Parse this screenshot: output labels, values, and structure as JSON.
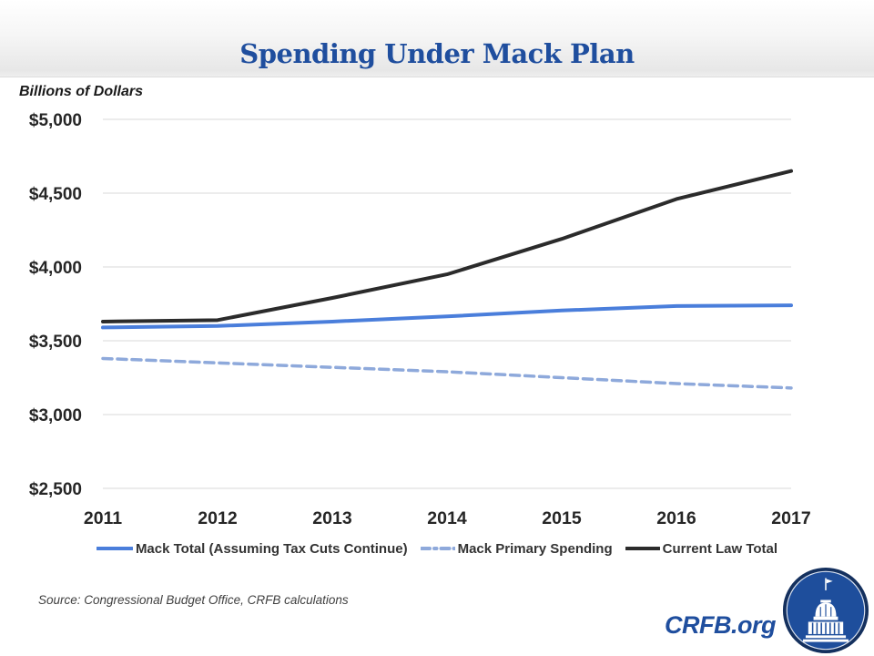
{
  "header": {
    "title": "Spending Under Mack Plan"
  },
  "axis_title": "Billions of Dollars",
  "chart_data": {
    "type": "line",
    "title": "Spending Under Mack Plan",
    "ylabel": "Billions of Dollars",
    "x": [
      2011,
      2012,
      2013,
      2014,
      2015,
      2016,
      2017
    ],
    "x_tick_labels": [
      "2011",
      "2012",
      "2013",
      "2014",
      "2015",
      "2016",
      "2017"
    ],
    "series": [
      {
        "name": "Mack Total (Assuming Tax Cuts Continue)",
        "style": "solid",
        "color": "#4a7edb",
        "width": 4,
        "values": [
          3590,
          3600,
          3630,
          3665,
          3705,
          3735,
          3740
        ]
      },
      {
        "name": "Mack Primary Spending",
        "style": "dashed",
        "color": "#8ea9db",
        "width": 3.5,
        "values": [
          3380,
          3350,
          3320,
          3290,
          3250,
          3210,
          3180
        ]
      },
      {
        "name": "Current Law Total",
        "style": "solid",
        "color": "#2b2b2b",
        "width": 4,
        "values": [
          3630,
          3640,
          3790,
          3950,
          4190,
          4460,
          4650
        ]
      }
    ],
    "ylim": [
      2500,
      5000
    ],
    "y_tick_values": [
      2500,
      3000,
      3500,
      4000,
      4500,
      5000
    ],
    "y_tick_labels": [
      "$2,500",
      "$3,000",
      "$3,500",
      "$4,000",
      "$4,500",
      "$5,000"
    ],
    "grid": "horizontal",
    "gridline_color": "#d9d9d9",
    "tick_label_color": "#262626",
    "legend_position": "bottom"
  },
  "legend": {
    "items": [
      {
        "label": "Mack Total (Assuming Tax Cuts Continue)",
        "swatch": "solid-blue"
      },
      {
        "label": "Mack Primary Spending",
        "swatch": "dashed-lightblue"
      },
      {
        "label": "Current Law Total",
        "swatch": "solid-black"
      }
    ]
  },
  "footer": {
    "source": "Source: Congressional Budget Office, CRFB calculations",
    "brand": "CRFB.org"
  },
  "colors": {
    "title_blue": "#1f4e9e",
    "mack_total_blue": "#4a7edb",
    "mack_primary_blue": "#8ea9db",
    "current_law_black": "#2b2b2b",
    "logo_blue": "#1e4e9c",
    "logo_ring": "#14305e"
  },
  "icons": {
    "logo": "capitol-icon"
  }
}
